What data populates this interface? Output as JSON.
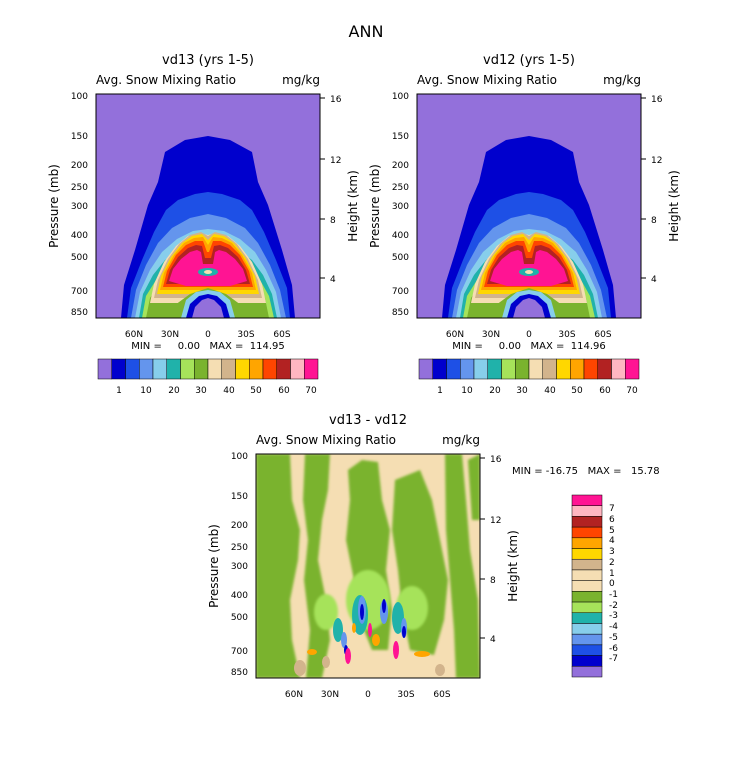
{
  "page_title": "ANN",
  "chart_data": [
    {
      "type": "heatmap",
      "title": "vd13 (yrs 1-5)",
      "subtitle_left": "Avg. Snow Mixing Ratio",
      "subtitle_right": "mg/kg",
      "ylabel": "Pressure (mb)",
      "ylabel_right": "Height (km)",
      "x_ticks": [
        "60N",
        "30N",
        "0",
        "30S",
        "60S"
      ],
      "y_ticks": [
        "100",
        "150",
        "200",
        "250",
        "300",
        "400",
        "500",
        "700",
        "850"
      ],
      "y_ticks_right": [
        "16",
        "12",
        "8",
        "4"
      ],
      "stats": "MIN =     0.00   MAX =  114.95",
      "colorbar_labels": [
        "1",
        "10",
        "20",
        "30",
        "40",
        "50",
        "60",
        "70"
      ]
    },
    {
      "type": "heatmap",
      "title": "vd12 (yrs 1-5)",
      "subtitle_left": "Avg. Snow Mixing Ratio",
      "subtitle_right": "mg/kg",
      "ylabel": "Pressure (mb)",
      "ylabel_right": "Height (km)",
      "x_ticks": [
        "60N",
        "30N",
        "0",
        "30S",
        "60S"
      ],
      "y_ticks": [
        "100",
        "150",
        "200",
        "250",
        "300",
        "400",
        "500",
        "700",
        "850"
      ],
      "y_ticks_right": [
        "16",
        "12",
        "8",
        "4"
      ],
      "stats": "MIN =     0.00   MAX =  114.96",
      "colorbar_labels": [
        "1",
        "10",
        "20",
        "30",
        "40",
        "50",
        "60",
        "70"
      ]
    },
    {
      "type": "heatmap",
      "title": "vd13 - vd12",
      "subtitle_left": "Avg. Snow Mixing Ratio",
      "subtitle_right": "mg/kg",
      "ylabel": "Pressure (mb)",
      "ylabel_right": "Height (km)",
      "x_ticks": [
        "60N",
        "30N",
        "0",
        "30S",
        "60S"
      ],
      "y_ticks": [
        "100",
        "150",
        "200",
        "250",
        "300",
        "400",
        "500",
        "700",
        "850"
      ],
      "y_ticks_right": [
        "16",
        "12",
        "8",
        "4"
      ],
      "stats": "MIN = -16.75   MAX =   15.78",
      "colorbar_labels": [
        "7",
        "6",
        "5",
        "4",
        "3",
        "2",
        "1",
        "0",
        "-1",
        "-2",
        "-3",
        "-4",
        "-5",
        "-6",
        "-7"
      ]
    }
  ],
  "colors": {
    "abs_scale": [
      "#9370db",
      "#0000cd",
      "#1e50e6",
      "#6495ed",
      "#87ceeb",
      "#20b2aa",
      "#a6e35a",
      "#7ab32e",
      "#f5deb3",
      "#d2b48c",
      "#ffd700",
      "#ffa500",
      "#ff4500",
      "#b22222",
      "#ffb6c1",
      "#ff1493"
    ],
    "diff_scale": [
      "#ff1493",
      "#ffb6c1",
      "#b22222",
      "#ff4500",
      "#ffa500",
      "#ffd700",
      "#d2b48c",
      "#f5deb3",
      "#f5deb3",
      "#7ab32e",
      "#a6e35a",
      "#20b2aa",
      "#87ceeb",
      "#6495ed",
      "#1e50e6",
      "#0000cd",
      "#9370db"
    ]
  }
}
